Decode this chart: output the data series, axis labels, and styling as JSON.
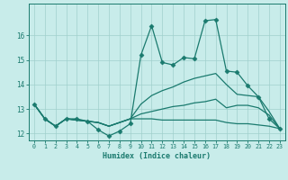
{
  "xlabel": "Humidex (Indice chaleur)",
  "background_color": "#c8ecea",
  "grid_color": "#a0d0cc",
  "line_color": "#1a7a6e",
  "x": [
    0,
    1,
    2,
    3,
    4,
    5,
    6,
    7,
    8,
    9,
    10,
    11,
    12,
    13,
    14,
    15,
    16,
    17,
    18,
    19,
    20,
    21,
    22,
    23
  ],
  "lines": [
    [
      13.2,
      12.6,
      12.3,
      12.6,
      12.6,
      12.5,
      12.15,
      11.9,
      12.1,
      12.4,
      15.2,
      16.4,
      14.9,
      14.8,
      15.1,
      15.05,
      16.6,
      16.65,
      14.55,
      14.5,
      13.95,
      13.5,
      12.6,
      12.2
    ],
    [
      13.2,
      12.6,
      12.3,
      12.6,
      12.55,
      12.5,
      12.45,
      12.3,
      12.45,
      12.6,
      13.2,
      13.55,
      13.75,
      13.9,
      14.1,
      14.25,
      14.35,
      14.45,
      14.0,
      13.6,
      13.55,
      13.5,
      12.9,
      12.2
    ],
    [
      13.2,
      12.6,
      12.3,
      12.6,
      12.55,
      12.5,
      12.45,
      12.3,
      12.45,
      12.6,
      12.8,
      12.9,
      13.0,
      13.1,
      13.15,
      13.25,
      13.3,
      13.4,
      13.05,
      13.15,
      13.15,
      13.05,
      12.75,
      12.2
    ],
    [
      13.2,
      12.6,
      12.3,
      12.6,
      12.55,
      12.5,
      12.45,
      12.3,
      12.45,
      12.6,
      12.6,
      12.6,
      12.55,
      12.55,
      12.55,
      12.55,
      12.55,
      12.55,
      12.45,
      12.4,
      12.4,
      12.35,
      12.3,
      12.2
    ]
  ],
  "ylim": [
    11.72,
    17.3
  ],
  "yticks": [
    12,
    13,
    14,
    15,
    16
  ],
  "xtick_labels": [
    "0",
    "1",
    "2",
    "3",
    "4",
    "5",
    "6",
    "7",
    "8",
    "9",
    "10",
    "11",
    "12",
    "13",
    "14",
    "15",
    "16",
    "17",
    "18",
    "19",
    "20",
    "21",
    "22",
    "23"
  ],
  "xlim": [
    -0.5,
    23.5
  ]
}
